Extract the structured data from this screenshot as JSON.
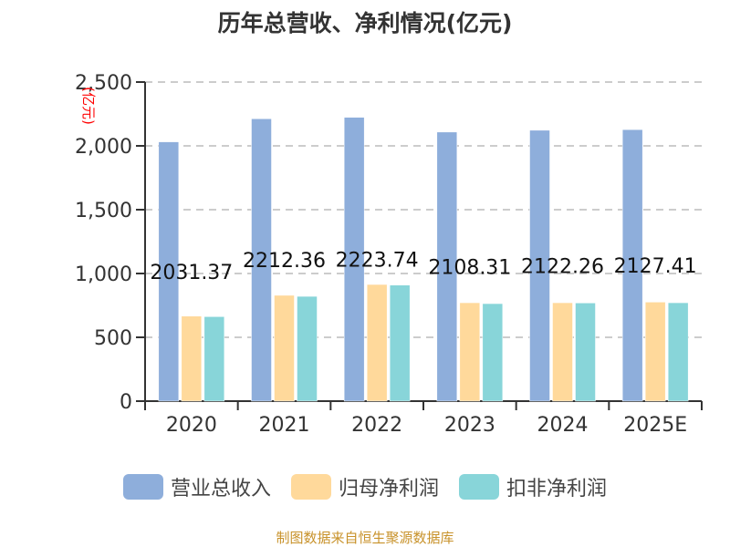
{
  "chart_data": {
    "type": "bar",
    "title": "历年总营收、净利情况(亿元)",
    "ylabel": "(亿元)",
    "ylim": [
      0,
      2500
    ],
    "yticks": [
      "0",
      "500",
      "1,000",
      "1,500",
      "2,000",
      "2,500"
    ],
    "categories": [
      "2020",
      "2021",
      "2022",
      "2023",
      "2024",
      "2025E"
    ],
    "grid": true,
    "legend_placement": "bottom",
    "series": [
      {
        "name": "营业总收入",
        "color": "#8eaedb",
        "values": [
          2031.37,
          2212.36,
          2223.74,
          2108.31,
          2122.26,
          2127.41
        ]
      },
      {
        "name": "归母净利润",
        "color": "#ffd99b",
        "values": [
          666,
          829,
          914,
          771,
          771,
          776
        ]
      },
      {
        "name": "扣非净利润",
        "color": "#88d5d9",
        "values": [
          662,
          821,
          909,
          764,
          769,
          771
        ]
      }
    ],
    "data_labels": [
      "2031.37",
      "2212.36",
      "2223.74",
      "2108.31",
      "2122.26",
      "2127.41"
    ]
  },
  "source": "制图数据来自恒生聚源数据库"
}
